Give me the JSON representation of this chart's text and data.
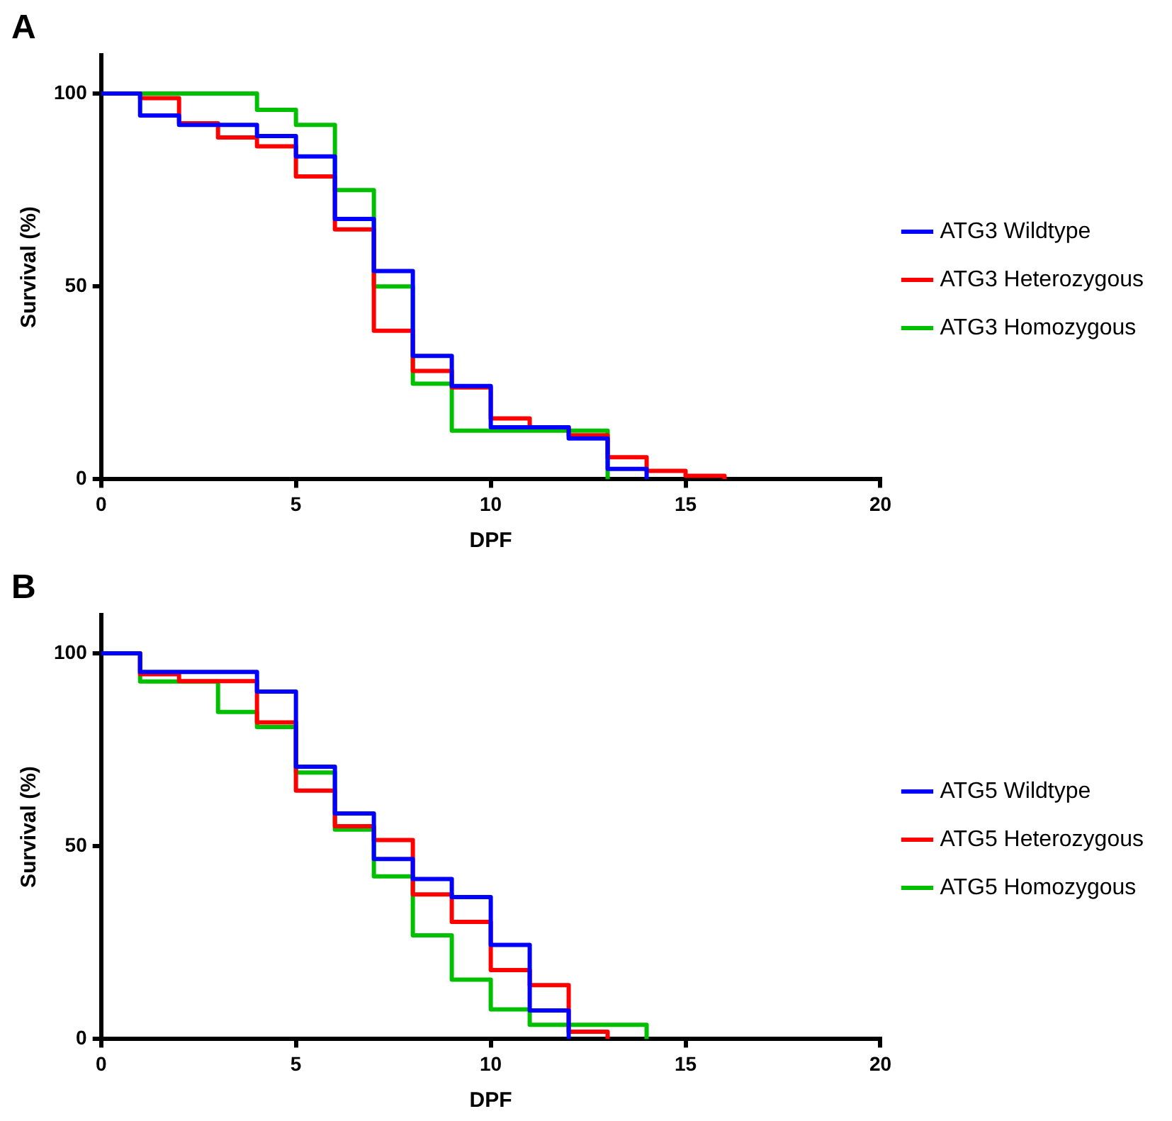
{
  "chart_data": [
    {
      "type": "step",
      "title": "A",
      "xlabel": "DPF",
      "ylabel": "Survival (%)",
      "xlim": [
        0,
        20
      ],
      "xticks": [
        0,
        5,
        10,
        15,
        20
      ],
      "ylim": [
        0,
        110
      ],
      "yticks": [
        0,
        50,
        100
      ],
      "grid": false,
      "legend": "right",
      "marker": "none",
      "line_style": "solid",
      "series": [
        {
          "name": "ATG3 Wildtype",
          "color": "#0000ff",
          "x": [
            0,
            1,
            2,
            4,
            5,
            6,
            7,
            8,
            9,
            10,
            12,
            13,
            14
          ],
          "values": [
            100,
            94.3,
            91.9,
            89,
            83.7,
            67.5,
            54,
            32,
            24.2,
            13.5,
            10.6,
            2.7,
            0
          ]
        },
        {
          "name": "ATG3 Heterozygous",
          "color": "#ff0000",
          "x": [
            0,
            1,
            2,
            3,
            4,
            5,
            6,
            7,
            8,
            9,
            10,
            11,
            12,
            13,
            14,
            15,
            16
          ],
          "values": [
            100,
            98.8,
            92.3,
            88.6,
            86.3,
            78.5,
            64.8,
            38.5,
            28.1,
            23.8,
            15.8,
            13.5,
            11.4,
            5.7,
            2.2,
            0.9,
            0
          ]
        },
        {
          "name": "ATG3 Homozygous",
          "color": "#00c000",
          "x": [
            0,
            4,
            5,
            6,
            7,
            8,
            9,
            13
          ],
          "values": [
            100,
            95.8,
            91.9,
            75,
            50,
            24.8,
            12.6,
            0
          ]
        }
      ]
    },
    {
      "type": "step",
      "title": "B",
      "xlabel": "DPF",
      "ylabel": "Survival (%)",
      "xlim": [
        0,
        20
      ],
      "xticks": [
        0,
        5,
        10,
        15,
        20
      ],
      "ylim": [
        0,
        110
      ],
      "yticks": [
        0,
        50,
        100
      ],
      "grid": false,
      "legend": "right",
      "marker": "none",
      "line_style": "solid",
      "series": [
        {
          "name": "ATG5 Wildtype",
          "color": "#0000ff",
          "x": [
            0,
            1,
            4,
            5,
            6,
            7,
            8,
            9,
            10,
            11,
            12
          ],
          "values": [
            100,
            95.2,
            90.1,
            70.6,
            58.5,
            46.7,
            41.5,
            36.8,
            24.4,
            7.4,
            0
          ]
        },
        {
          "name": "ATG5 Heterozygous",
          "color": "#ff0000",
          "x": [
            0,
            1,
            2,
            4,
            5,
            6,
            7,
            8,
            9,
            10,
            11,
            12,
            13
          ],
          "values": [
            100,
            94.6,
            92.8,
            82.1,
            64.4,
            55.2,
            51.6,
            37.5,
            30.4,
            17.9,
            14,
            1.9,
            0
          ]
        },
        {
          "name": "ATG5 Homozygous",
          "color": "#00c000",
          "x": [
            0,
            1,
            3,
            4,
            5,
            6,
            7,
            8,
            9,
            10,
            11,
            14
          ],
          "values": [
            100,
            92.7,
            84.8,
            80.9,
            69.1,
            54.3,
            42.2,
            26.9,
            15.4,
            7.7,
            3.7,
            0
          ]
        }
      ]
    }
  ]
}
